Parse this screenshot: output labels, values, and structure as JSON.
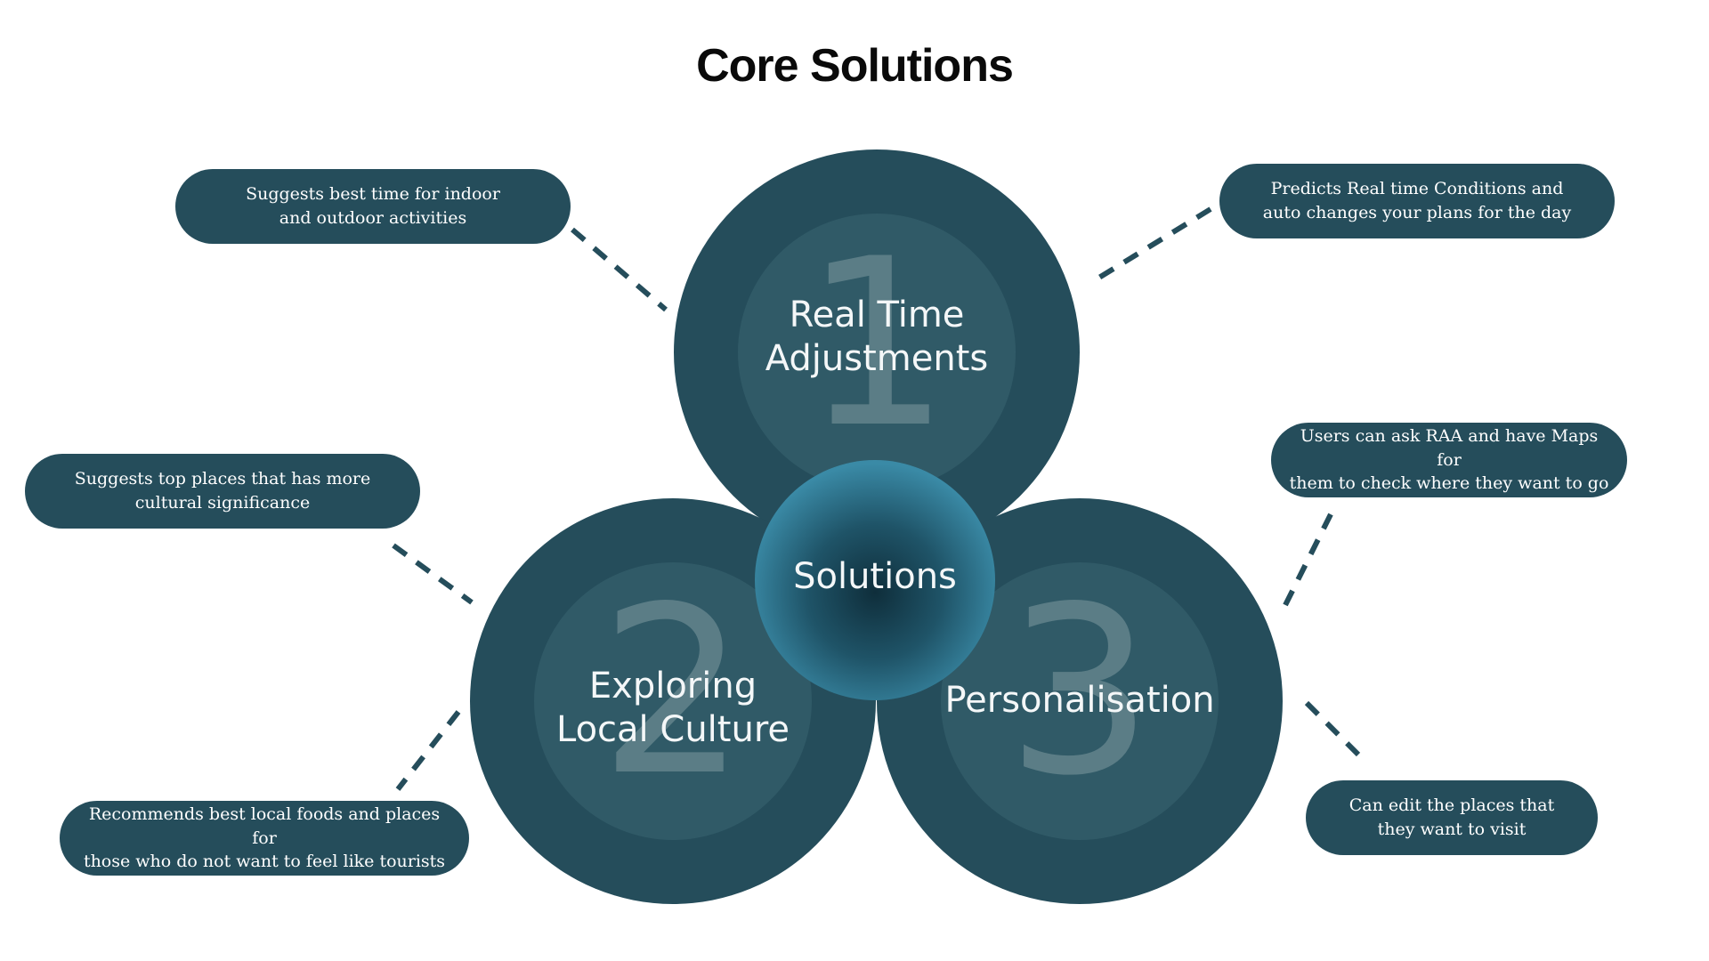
{
  "title": "Core Solutions",
  "center": {
    "label": "Solutions"
  },
  "solutions": [
    {
      "number": "1",
      "label_lines": [
        "Real Time",
        "Adjustments"
      ]
    },
    {
      "number": "2",
      "label_lines": [
        "Exploring",
        "Local Culture"
      ]
    },
    {
      "number": "3",
      "label_lines": [
        "Personalisation"
      ]
    }
  ],
  "callouts": {
    "top_left": [
      "Suggests best time for indoor",
      "and outdoor activities"
    ],
    "top_right": [
      "Predicts Real time Conditions and",
      "auto changes your plans for the day"
    ],
    "mid_left": [
      "Suggests top places that has more",
      "cultural significance"
    ],
    "bottom_left": [
      "Recommends best local foods and places for",
      "those who do not want to feel like tourists"
    ],
    "mid_right": [
      "Users can ask RAA and have Maps for",
      "them to check where they want to go"
    ],
    "bottom_right": [
      "Can edit the places that",
      "they want to visit"
    ]
  },
  "colors": {
    "circle": "#254d5b",
    "inner_circle": "#305a67",
    "number": "#5b7d86",
    "center": "#4795b0",
    "pill": "#254d5b",
    "connector": "#254d5b"
  }
}
